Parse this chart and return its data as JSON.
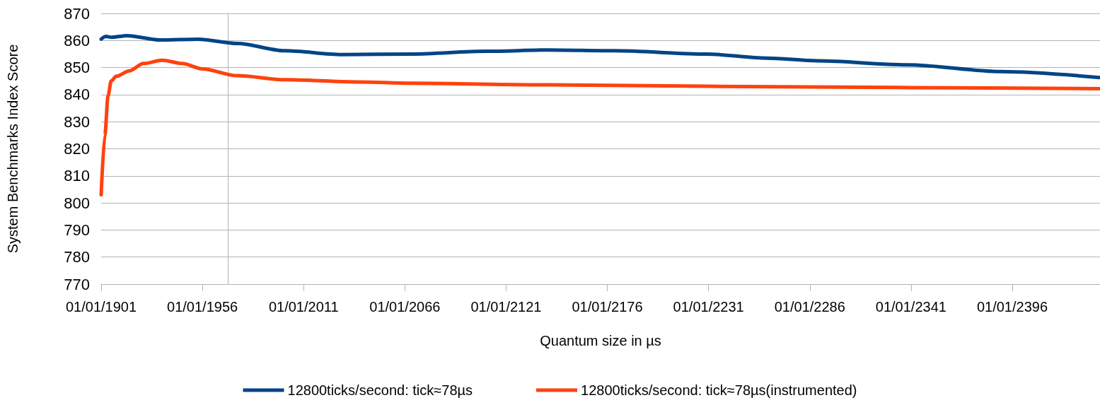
{
  "chart_data": {
    "type": "line",
    "xlabel": "Quantum size in µs",
    "ylabel": "System Benchmarks Index Score",
    "xlim": [
      "1901-01-01",
      "2443-09-01"
    ],
    "xticks": [
      {
        "value": "1901-01-01",
        "label": "01/01/1901"
      },
      {
        "value": "1956-01-01",
        "label": "01/01/1956"
      },
      {
        "value": "2011-01-01",
        "label": "01/01/2011"
      },
      {
        "value": "2066-01-01",
        "label": "01/01/2066"
      },
      {
        "value": "2121-01-01",
        "label": "01/01/2121"
      },
      {
        "value": "2176-01-01",
        "label": "01/01/2176"
      },
      {
        "value": "2231-01-01",
        "label": "01/01/2231"
      },
      {
        "value": "2286-01-01",
        "label": "01/01/2286"
      },
      {
        "value": "2341-01-01",
        "label": "01/01/2341"
      },
      {
        "value": "2396-01-01",
        "label": "01/01/2396"
      }
    ],
    "ylim": [
      770,
      870
    ],
    "yticks": [
      770,
      780,
      790,
      800,
      810,
      820,
      830,
      840,
      850,
      860,
      870
    ],
    "grid": "y",
    "legend": "bottom",
    "marker": "none",
    "line_style": "solid",
    "series": [
      {
        "name": "12800ticks/second: tick≈78µs",
        "color": "#004586",
        "x": [
          "1901-01-01",
          "1903-08-01",
          "1906-10-01",
          "1915-01-01",
          "1933-01-01",
          "1953-08-01",
          "1975-01-01",
          "2001-01-01",
          "2031-10-01",
          "2070-01-01",
          "2110-01-01",
          "2144-06-01",
          "2180-01-01",
          "2230-01-01",
          "2262-06-01",
          "2290-01-01",
          "2339-06-01",
          "2390-01-01",
          "2443-09-01"
        ],
        "values": [
          860.5,
          861.5,
          861.2,
          861.8,
          860.2,
          860.5,
          858.9,
          856.2,
          854.8,
          855,
          856,
          856.5,
          856.2,
          855,
          853.5,
          852.5,
          851,
          848.5,
          846.3
        ]
      },
      {
        "name": "12800ticks/second: tick≈78µs(instrumented)",
        "color": "#ff420e",
        "x": [
          "1901-01-01",
          "1903-01-01",
          "1904-10-01",
          "1906-06-01",
          "1909-04-01",
          "1916-05-01",
          "1924-01-01",
          "1934-04-01",
          "1945-01-01",
          "1956-01-01",
          "1975-01-01",
          "2001-01-01",
          "2039-06-01",
          "2070-01-01",
          "2144-06-01",
          "2230-01-01",
          "2340-01-01",
          "2443-09-01"
        ],
        "values": [
          803,
          825,
          839.5,
          845,
          846.8,
          848.8,
          851.5,
          852.7,
          851.5,
          849.5,
          847,
          845.5,
          844.7,
          844.2,
          843.6,
          843.1,
          842.6,
          842.2
        ]
      }
    ]
  }
}
